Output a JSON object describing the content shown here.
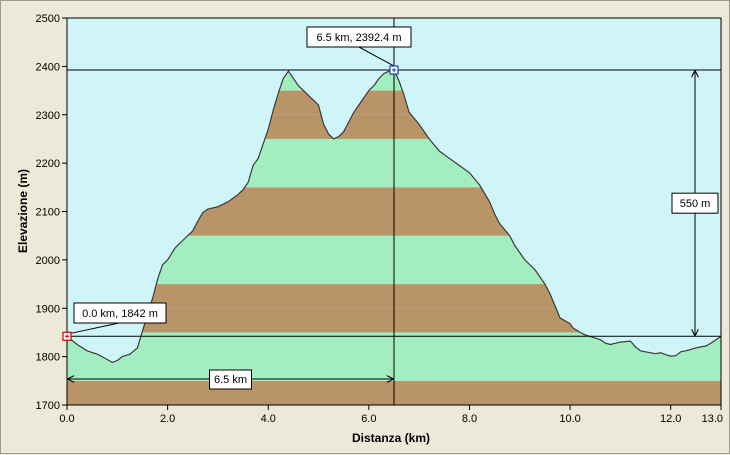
{
  "chart_data": {
    "type": "area",
    "xlabel": "Distanza  (km)",
    "ylabel": "Elevazione (m)",
    "xlim": [
      0,
      13
    ],
    "ylim": [
      1700,
      2500
    ],
    "x_ticks": [
      "0.0",
      "2.0",
      "4.0",
      "6.0",
      "8.0",
      "10.0",
      "12.0",
      "13.0"
    ],
    "x_tick_values": [
      0,
      2,
      4,
      6,
      8,
      10,
      12,
      13
    ],
    "y_ticks": [
      "1700",
      "1800",
      "1900",
      "2000",
      "2100",
      "2200",
      "2300",
      "2400",
      "2500"
    ],
    "y_tick_values": [
      1700,
      1800,
      1900,
      2000,
      2100,
      2200,
      2300,
      2400,
      2500
    ],
    "grid": false,
    "band_colors": [
      "#b89468",
      "#a3eec0"
    ],
    "plot_background": "#cff5f8",
    "line_color": "#3a3a3a",
    "series": [
      {
        "x": [
          0,
          0.2,
          0.4,
          0.6,
          0.75,
          0.9,
          1.0,
          1.1,
          1.25,
          1.4,
          1.55,
          1.7,
          1.8,
          1.9,
          2.0,
          2.15,
          2.3,
          2.5,
          2.6,
          2.7,
          2.8,
          3.0,
          3.2,
          3.4,
          3.5,
          3.6,
          3.7,
          3.8,
          3.9,
          4.0,
          4.1,
          4.2,
          4.3,
          4.4,
          4.6,
          4.8,
          5.0,
          5.1,
          5.2,
          5.3,
          5.4,
          5.5,
          5.6,
          5.7,
          5.8,
          5.9,
          6.0,
          6.1,
          6.2,
          6.3,
          6.4,
          6.5,
          6.6,
          6.7,
          6.8,
          7.0,
          7.2,
          7.4,
          7.6,
          7.8,
          8.0,
          8.2,
          8.4,
          8.5,
          8.6,
          8.8,
          8.9,
          9.1,
          9.3,
          9.5,
          9.6,
          9.7,
          9.8,
          10.0,
          10.05,
          10.2,
          10.3,
          10.45,
          10.6,
          10.7,
          10.8,
          11.0,
          11.2,
          11.3,
          11.4,
          11.5,
          11.6,
          11.7,
          11.8,
          11.9,
          12.0,
          12.1,
          12.2,
          12.3,
          12.4,
          12.5,
          12.6,
          12.7,
          12.8,
          12.9,
          13.0
        ],
        "y": [
          1842,
          1825,
          1812,
          1805,
          1797,
          1788,
          1792,
          1800,
          1805,
          1818,
          1870,
          1920,
          1960,
          1990,
          2000,
          2025,
          2040,
          2060,
          2080,
          2098,
          2105,
          2110,
          2120,
          2135,
          2145,
          2160,
          2195,
          2210,
          2240,
          2270,
          2310,
          2345,
          2375,
          2390,
          2360,
          2340,
          2320,
          2280,
          2260,
          2250,
          2255,
          2265,
          2285,
          2305,
          2320,
          2335,
          2350,
          2360,
          2375,
          2385,
          2390,
          2392.4,
          2370,
          2340,
          2305,
          2280,
          2250,
          2225,
          2210,
          2195,
          2180,
          2155,
          2120,
          2095,
          2075,
          2050,
          2030,
          2000,
          1980,
          1950,
          1930,
          1905,
          1880,
          1868,
          1860,
          1850,
          1845,
          1840,
          1835,
          1828,
          1825,
          1830,
          1832,
          1820,
          1812,
          1810,
          1808,
          1806,
          1808,
          1804,
          1801,
          1802,
          1810,
          1812,
          1815,
          1818,
          1820,
          1822,
          1828,
          1835,
          1842
        ]
      }
    ],
    "annotations": {
      "start_label": "0.0 km, 1842 m",
      "peak_label": "6.5 km, 2392.4 m",
      "distance_label": "6.5 km",
      "elevation_gain_label": "550 m",
      "start_point": [
        0,
        1842
      ],
      "peak_point": [
        6.5,
        2392.4
      ]
    }
  }
}
